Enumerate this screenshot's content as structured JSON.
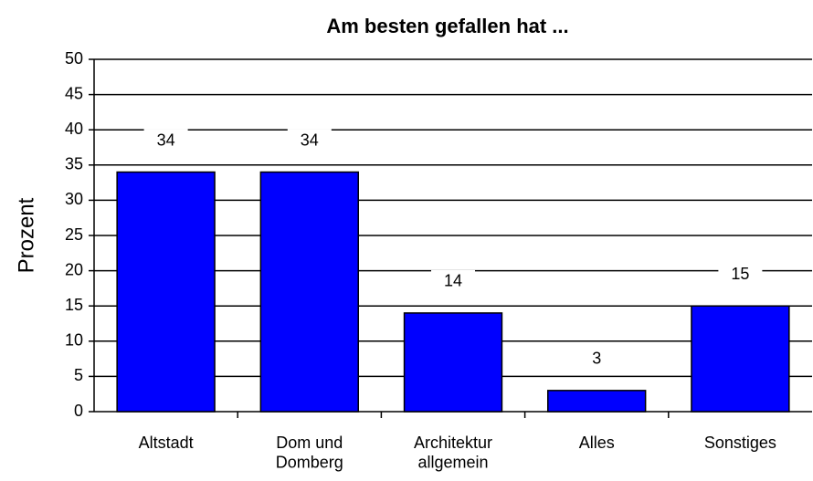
{
  "chart_data": {
    "type": "bar",
    "title": "Am besten gefallen hat ...",
    "y_label": "Prozent",
    "categories": [
      "Altstadt",
      "Dom und\nDomberg",
      "Architektur\nallgemein",
      "Alles",
      "Sonstiges"
    ],
    "values": [
      34,
      34,
      14,
      3,
      15
    ],
    "color": "#0000ff",
    "ylim": [
      0,
      50
    ],
    "yticks": [
      0,
      5,
      10,
      15,
      20,
      25,
      30,
      35,
      40,
      45,
      50
    ],
    "grid": true
  }
}
